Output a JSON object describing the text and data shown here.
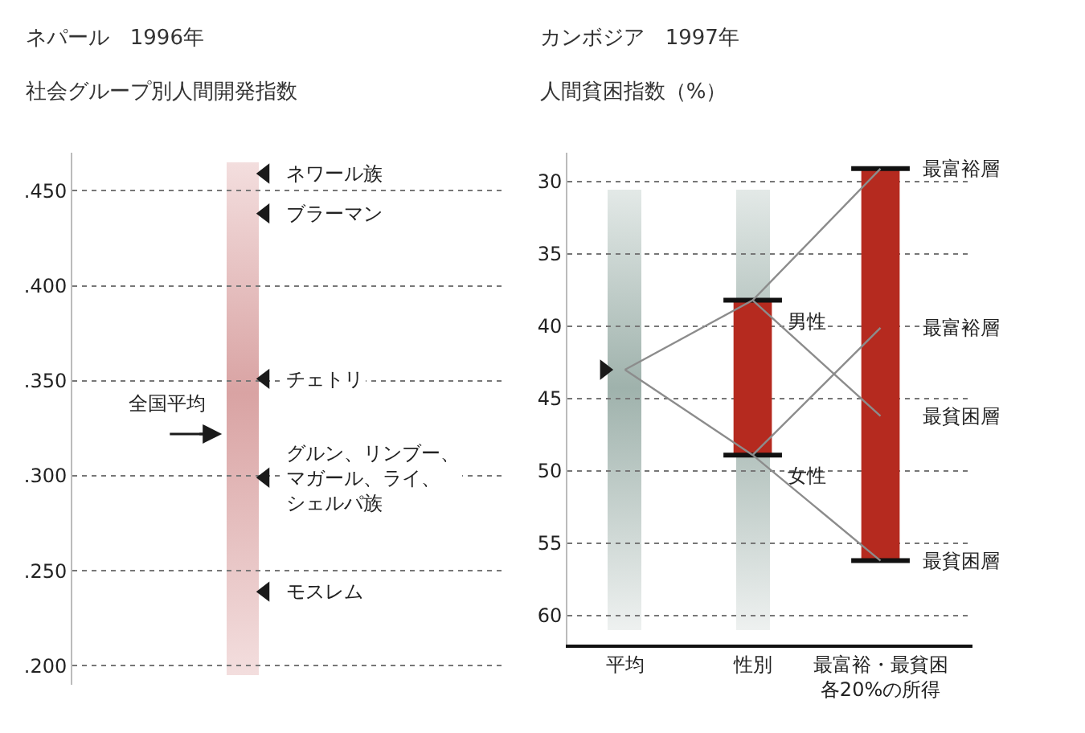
{
  "chart_data": [
    {
      "type": "scatter",
      "title": "ネパール　1996年",
      "subtitle": "社会グループ別人間開発指数",
      "categories": [
        null
      ],
      "ylim": [
        0.19,
        0.47
      ],
      "yticks": [
        {
          "value": 0.2,
          "label": ".200"
        },
        {
          "value": 0.25,
          "label": ".250"
        },
        {
          "value": 0.3,
          "label": ".300"
        },
        {
          "value": 0.35,
          "label": ".350"
        },
        {
          "value": 0.4,
          "label": ".400"
        },
        {
          "value": 0.45,
          "label": ".450"
        }
      ],
      "tick_labels": "y",
      "grid": "y",
      "marker": "triangle",
      "series": [
        {
          "name": "ネワール族",
          "color": "#1a1a1a",
          "values": [
            0.459
          ]
        },
        {
          "name": "ブラーマン",
          "color": "#1a1a1a",
          "values": [
            0.438
          ]
        },
        {
          "name": "チェトリ",
          "color": "#1a1a1a",
          "values": [
            0.351
          ]
        },
        {
          "name": "グルン、リンブー、マガール、ライ、シェルパ族",
          "color": "#1a1a1a",
          "values": [
            0.299
          ]
        },
        {
          "name": "モスレム",
          "color": "#1a1a1a",
          "values": [
            0.239
          ]
        }
      ],
      "ref_lines": [
        {
          "axis": "y",
          "value": 0.322,
          "label": "全国平均",
          "color": "#1a1a1a"
        }
      ]
    },
    {
      "type": "bar",
      "title": "カンボジア　1997年",
      "subtitle": "人間貧困指数（%）",
      "categories": [
        "平均",
        "性別",
        "最富裕・最貧困各20%の所得"
      ],
      "ylim": [
        62,
        28
      ],
      "yticks": [
        30,
        35,
        40,
        45,
        50,
        55,
        60
      ],
      "grid": "y",
      "marker": "triangle",
      "series": [
        {
          "type": "line",
          "marker": "none",
          "color": "#8c8c8c",
          "x": [
            "平均",
            "性別",
            "最富裕・最貧困各20%の所得"
          ],
          "values": [
            43,
            38.2,
            29.1
          ]
        },
        {
          "type": "line",
          "marker": "none",
          "color": "#8c8c8c",
          "x": [
            "平均",
            "性別",
            "最富裕・最貧困各20%の所得"
          ],
          "values": [
            43,
            48.9,
            56.2
          ]
        },
        {
          "type": "line",
          "marker": "none",
          "color": "#8c8c8c",
          "x": [
            "性別",
            "最富裕・最貧困各20%の所得"
          ],
          "values": [
            38.2,
            46.2
          ]
        },
        {
          "type": "line",
          "marker": "none",
          "color": "#8c8c8c",
          "x": [
            "性別",
            "最富裕・最貧困各20%の所得"
          ],
          "values": [
            48.9,
            40.1
          ]
        },
        {
          "type": "bar",
          "color": "#b52a1f",
          "values": [
            null,
            10.7,
            27.1
          ],
          "base": [
            null,
            38.2,
            29.1
          ]
        },
        {
          "type": "scatter",
          "color": "#1a1a1a",
          "values": [
            43,
            null,
            null
          ]
        }
      ],
      "annotations": [
        {
          "text": "男性",
          "x": "性別",
          "y": 38.2
        },
        {
          "text": "女性",
          "x": "性別",
          "y": 48.9
        },
        {
          "text": "最富裕層",
          "x": "最富裕・最貧困各20%の所得",
          "y": 29.1
        },
        {
          "text": "最富裕層",
          "x": "最富裕・最貧困各20%の所得",
          "y": 40.1
        },
        {
          "text": "最貧困層",
          "x": "最富裕・最貧困各20%の所得",
          "y": 46.2
        },
        {
          "text": "最貧困層",
          "x": "最富裕・最貧困各20%の所得",
          "y": 56.2
        }
      ]
    }
  ]
}
